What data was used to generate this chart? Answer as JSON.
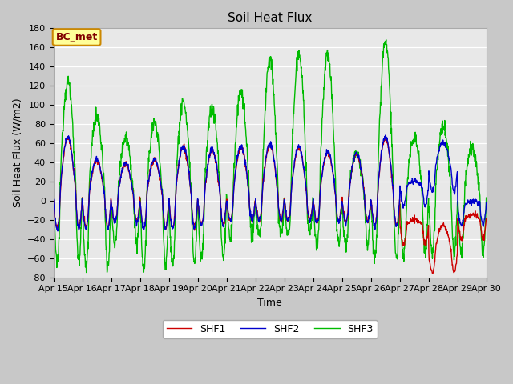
{
  "title": "Soil Heat Flux",
  "ylabel": "Soil Heat Flux (W/m2)",
  "xlabel": "Time",
  "ylim": [
    -80,
    180
  ],
  "shf1_color": "#cc0000",
  "shf2_color": "#0000cc",
  "shf3_color": "#00bb00",
  "legend_labels": [
    "SHF1",
    "SHF2",
    "SHF3"
  ],
  "annotation_text": "BC_met",
  "annotation_fg": "#800000",
  "annotation_bg": "#ffff99",
  "annotation_border": "#cc8800",
  "xtick_labels": [
    "Apr 15",
    "Apr 16",
    "Apr 17",
    "Apr 18",
    "Apr 19",
    "Apr 20",
    "Apr 21",
    "Apr 22",
    "Apr 23",
    "Apr 24",
    "Apr 25",
    "Apr 26",
    "Apr 27",
    "Apr 28",
    "Apr 29",
    "Apr 30"
  ],
  "title_fontsize": 11,
  "label_fontsize": 9,
  "tick_fontsize": 8,
  "legend_fontsize": 9,
  "linewidth": 1.0,
  "fig_width": 6.4,
  "fig_height": 4.8,
  "dpi": 100
}
